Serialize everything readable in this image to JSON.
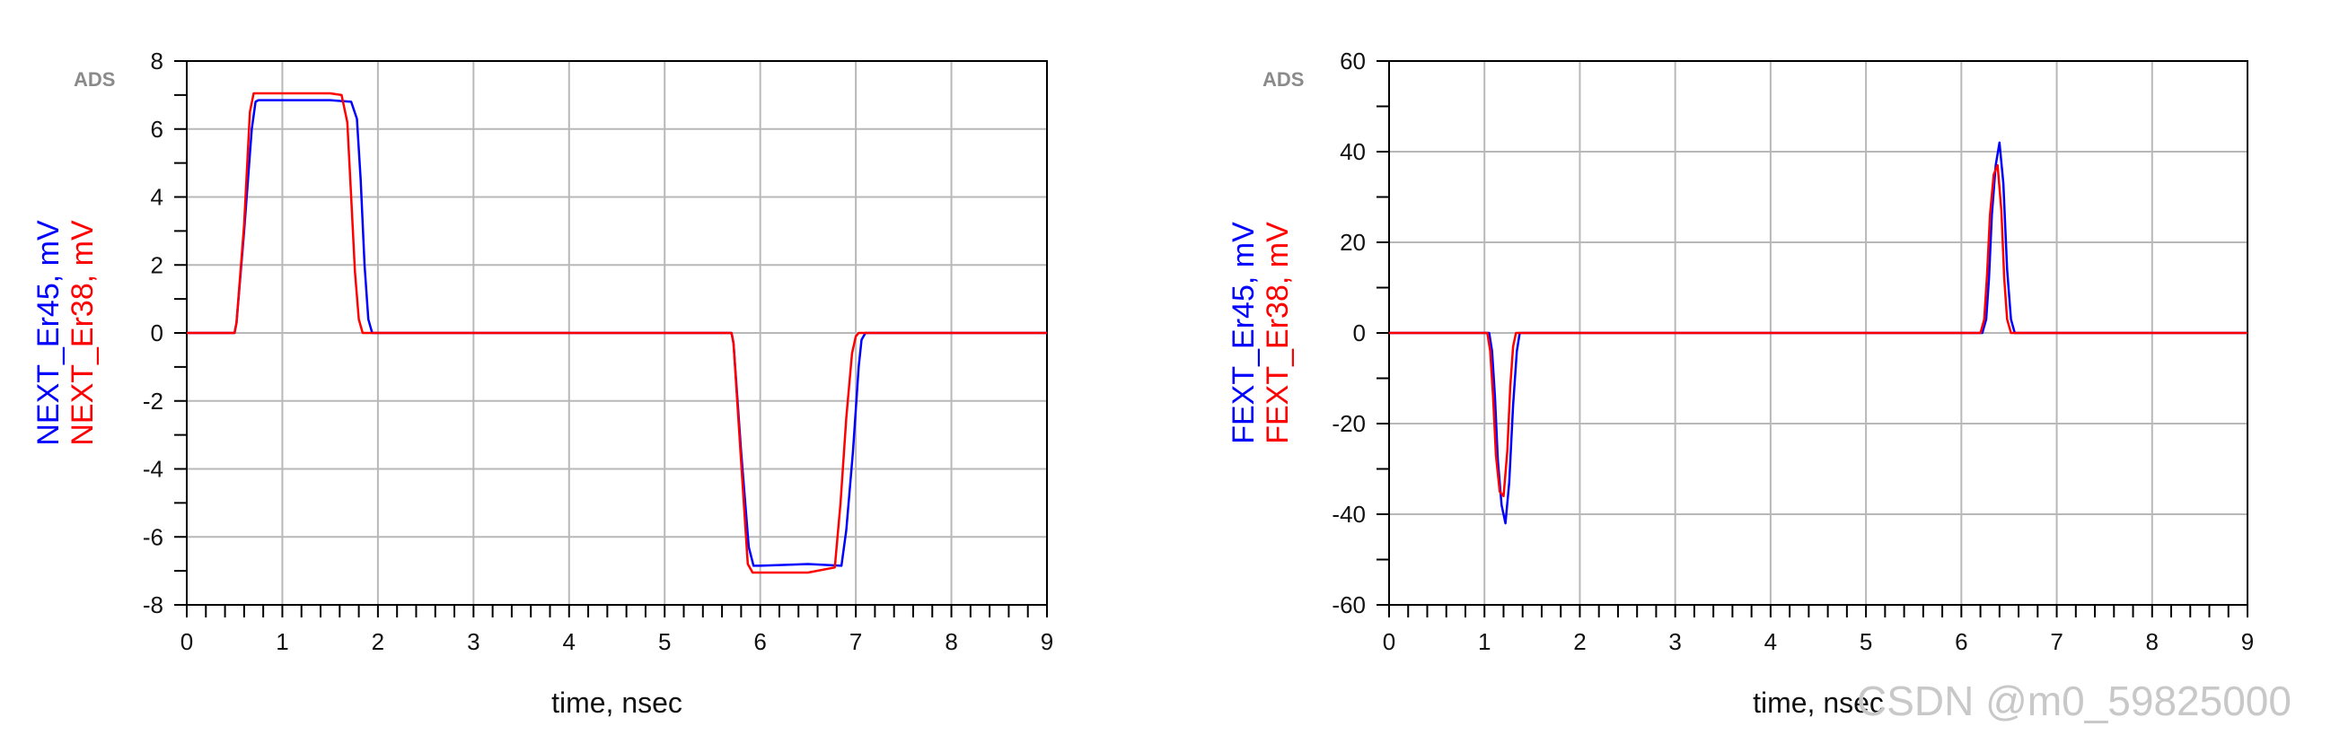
{
  "watermark": "CSDN @m0_59825000",
  "chart_data": [
    {
      "type": "line",
      "badge": "ADS",
      "xlabel": "time, nsec",
      "xlim": [
        0,
        9
      ],
      "ylim": [
        -8,
        8
      ],
      "xticks": [
        0,
        1,
        2,
        3,
        4,
        5,
        6,
        7,
        8,
        9
      ],
      "yticks": [
        -8,
        -6,
        -4,
        -2,
        0,
        2,
        4,
        6,
        8
      ],
      "grid": true,
      "series": [
        {
          "name": "NEXT_Er45, mV",
          "color": "#0000ff",
          "x": [
            0,
            0.5,
            0.52,
            0.6,
            0.68,
            0.72,
            0.75,
            1.0,
            1.5,
            1.72,
            1.78,
            1.82,
            1.86,
            1.9,
            1.94,
            2.0,
            5.7,
            5.72,
            5.8,
            5.88,
            5.93,
            6.0,
            6.5,
            6.85,
            6.9,
            6.97,
            7.03,
            7.06,
            7.1,
            9
          ],
          "y": [
            0,
            0,
            0.3,
            3.0,
            6.0,
            6.8,
            6.85,
            6.85,
            6.85,
            6.8,
            6.3,
            4.5,
            2.0,
            0.4,
            0,
            0,
            0,
            -0.3,
            -3.5,
            -6.3,
            -6.85,
            -6.85,
            -6.8,
            -6.85,
            -5.8,
            -3.5,
            -1.0,
            -0.2,
            0,
            0
          ]
        },
        {
          "name": "NEXT_Er38, mV",
          "color": "#ff0000",
          "x": [
            0,
            0.5,
            0.52,
            0.6,
            0.66,
            0.7,
            0.73,
            1.0,
            1.5,
            1.62,
            1.68,
            1.72,
            1.76,
            1.8,
            1.84,
            1.9,
            5.7,
            5.72,
            5.8,
            5.87,
            5.92,
            6.0,
            6.5,
            6.78,
            6.84,
            6.9,
            6.96,
            7.0,
            7.03,
            9
          ],
          "y": [
            0,
            0,
            0.3,
            3.2,
            6.5,
            7.05,
            7.05,
            7.05,
            7.05,
            7.0,
            6.2,
            4.0,
            1.8,
            0.4,
            0,
            0,
            0,
            -0.3,
            -3.8,
            -6.8,
            -7.05,
            -7.05,
            -7.05,
            -6.9,
            -5.0,
            -2.5,
            -0.6,
            -0.1,
            0,
            0
          ]
        }
      ]
    },
    {
      "type": "line",
      "badge": "ADS",
      "xlabel": "time, nsec",
      "xlim": [
        0,
        9
      ],
      "ylim": [
        -60,
        60
      ],
      "xticks": [
        0,
        1,
        2,
        3,
        4,
        5,
        6,
        7,
        8,
        9
      ],
      "yticks": [
        -60,
        -40,
        -20,
        0,
        20,
        40,
        60
      ],
      "grid": true,
      "series": [
        {
          "name": "FEXT_Er45, mV",
          "color": "#0000ff",
          "x": [
            0,
            1.05,
            1.08,
            1.11,
            1.14,
            1.18,
            1.22,
            1.26,
            1.3,
            1.34,
            1.37,
            6.22,
            6.26,
            6.29,
            6.32,
            6.36,
            6.4,
            6.44,
            6.48,
            6.52,
            6.56,
            9
          ],
          "y": [
            0,
            0,
            -4,
            -14,
            -28,
            -38,
            -42,
            -33,
            -16,
            -4,
            0,
            0,
            3,
            12,
            26,
            37,
            42,
            33,
            14,
            3,
            0,
            0
          ]
        },
        {
          "name": "FEXT_Er38, mV",
          "color": "#ff0000",
          "x": [
            0,
            1.03,
            1.06,
            1.09,
            1.12,
            1.16,
            1.2,
            1.24,
            1.27,
            1.3,
            1.33,
            6.2,
            6.24,
            6.27,
            6.3,
            6.34,
            6.38,
            6.42,
            6.45,
            6.48,
            6.52,
            9
          ],
          "y": [
            0,
            0,
            -4,
            -14,
            -27,
            -35,
            -36,
            -26,
            -12,
            -3,
            0,
            0,
            3,
            13,
            26,
            35,
            37,
            27,
            12,
            3,
            0,
            0
          ]
        }
      ]
    }
  ]
}
